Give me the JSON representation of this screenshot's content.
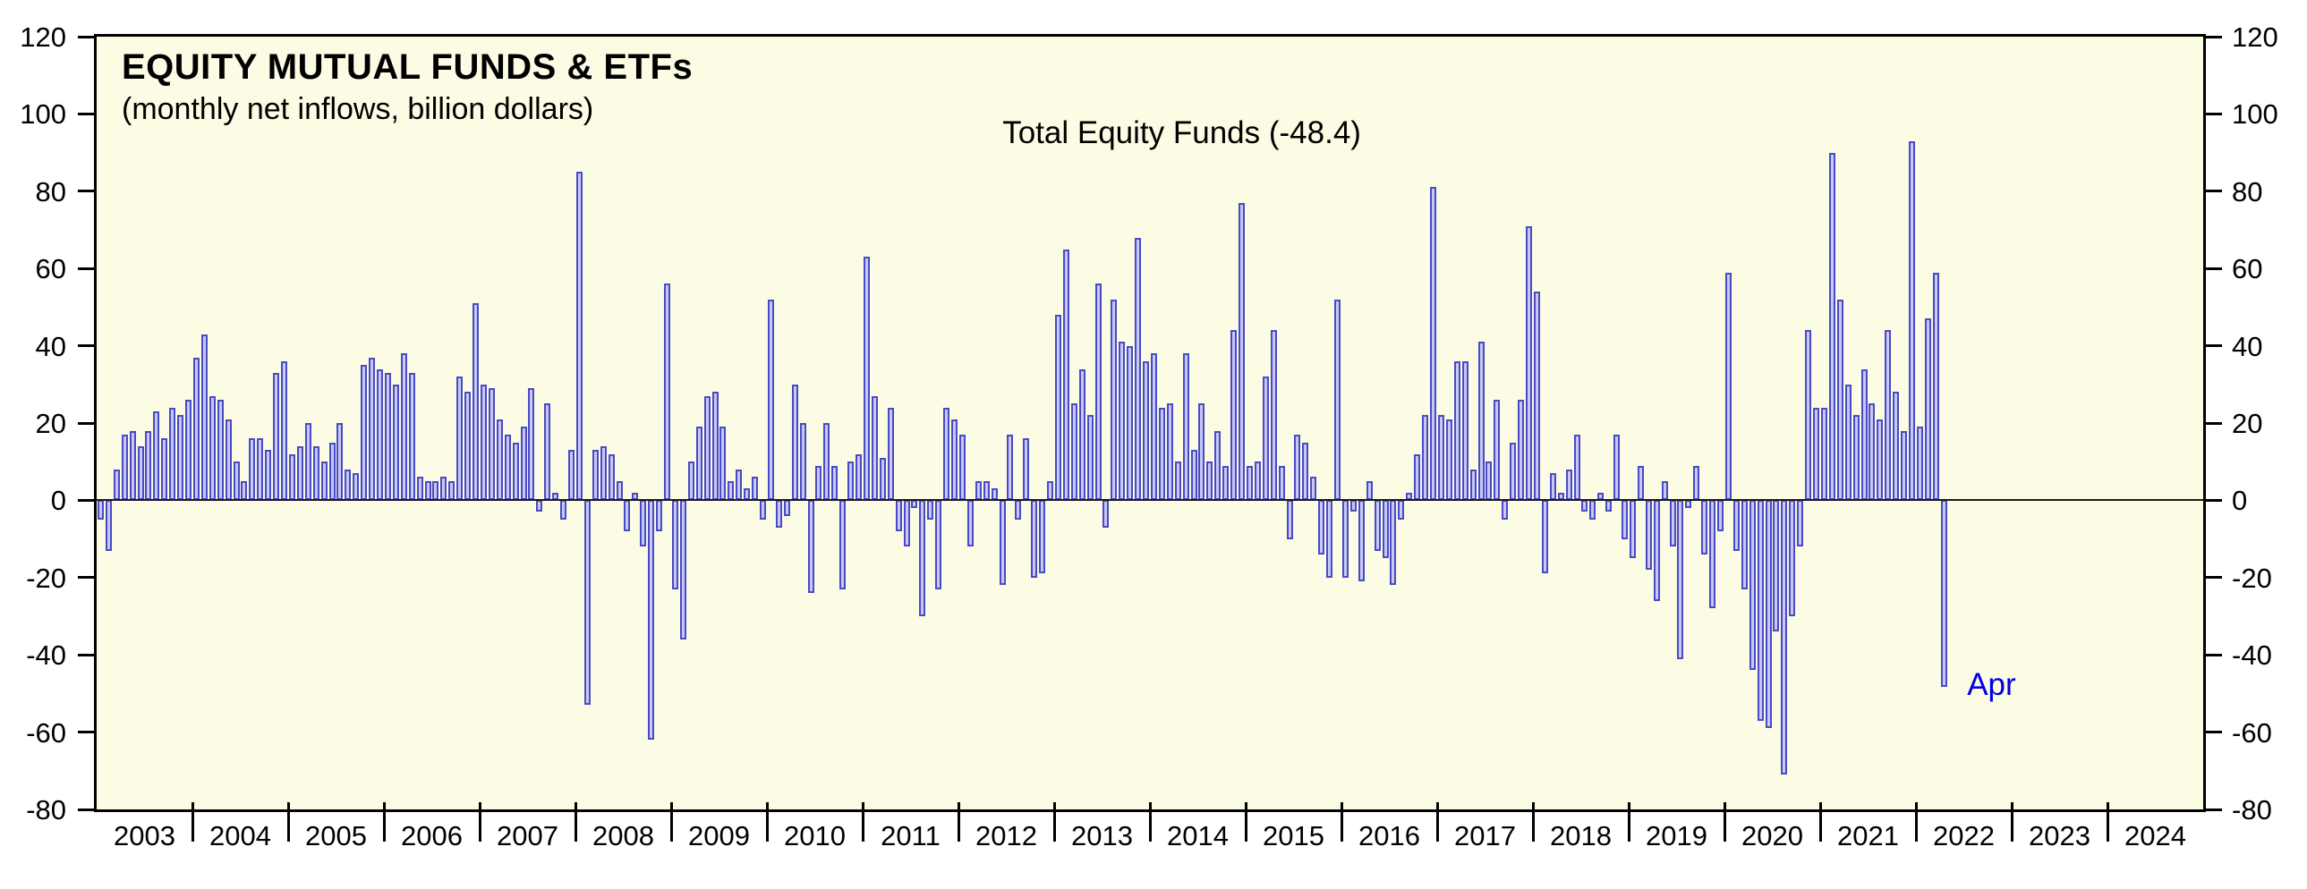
{
  "chart_data": {
    "type": "bar",
    "title": "EQUITY MUTUAL FUNDS & ETFs",
    "subtitle": "(monthly net inflows, billion dollars)",
    "series_label": "Total Equity Funds (-48.4)",
    "end_label": "Apr",
    "xlabel": "",
    "ylabel": "",
    "ylim": [
      -80,
      120
    ],
    "ytick_step": 20,
    "yticks": [
      -80,
      -60,
      -40,
      -20,
      0,
      20,
      40,
      60,
      80,
      100,
      120
    ],
    "x_years_axis": [
      "2003",
      "2004",
      "2005",
      "2006",
      "2007",
      "2008",
      "2009",
      "2010",
      "2011",
      "2012",
      "2013",
      "2014",
      "2015",
      "2016",
      "2017",
      "2018",
      "2019",
      "2020",
      "2021",
      "2022",
      "2023",
      "2024"
    ],
    "data_start_year": 2003,
    "data_start_month": "2003-01",
    "data_end_month": "2022-04",
    "grid": false,
    "legend_position": "none",
    "series": [
      {
        "name": "Total Equity Funds",
        "last_value": -48.4,
        "values_by_year": {
          "2003": [
            -5,
            -13,
            8,
            17,
            18,
            14,
            18,
            23,
            16,
            24,
            22,
            26
          ],
          "2004": [
            37,
            43,
            27,
            26,
            21,
            10,
            5,
            16,
            16,
            13,
            33,
            36
          ],
          "2005": [
            12,
            14,
            20,
            14,
            10,
            15,
            20,
            8,
            7,
            35,
            37,
            34
          ],
          "2006": [
            33,
            30,
            38,
            33,
            6,
            5,
            5,
            6,
            5,
            32,
            28,
            51
          ],
          "2007": [
            30,
            29,
            21,
            17,
            15,
            19,
            29,
            -3,
            25,
            2,
            -5,
            13
          ],
          "2008": [
            85,
            -53,
            13,
            14,
            12,
            5,
            -8,
            2,
            -12,
            -62,
            -8,
            56
          ],
          "2009": [
            -23,
            -36,
            10,
            19,
            27,
            28,
            19,
            5,
            8,
            3,
            6,
            -5
          ],
          "2010": [
            52,
            -7,
            -4,
            30,
            20,
            -24,
            9,
            20,
            9,
            -23,
            10,
            12
          ],
          "2011": [
            63,
            27,
            11,
            24,
            -8,
            -12,
            -2,
            -30,
            -5,
            -23,
            24,
            21
          ],
          "2012": [
            17,
            -12,
            5,
            5,
            3,
            -22,
            17,
            -5,
            16,
            -20,
            -19,
            5
          ],
          "2013": [
            48,
            65,
            25,
            34,
            22,
            56,
            -7,
            52,
            41,
            40,
            68,
            36
          ],
          "2014": [
            38,
            24,
            25,
            10,
            38,
            13,
            25,
            10,
            18,
            9,
            44,
            77
          ],
          "2015": [
            9,
            10,
            32,
            44,
            9,
            -10,
            17,
            15,
            6,
            -14,
            -20,
            52
          ],
          "2016": [
            -20,
            -3,
            -21,
            5,
            -13,
            -15,
            -22,
            -5,
            2,
            12,
            22,
            81
          ],
          "2017": [
            22,
            21,
            36,
            36,
            8,
            41,
            10,
            26,
            -5,
            15,
            26,
            71
          ],
          "2018": [
            54,
            -19,
            7,
            2,
            8,
            17,
            -3,
            -5,
            2,
            -3,
            17,
            -10
          ],
          "2019": [
            -15,
            9,
            -18,
            -26,
            5,
            -12,
            -41,
            -2,
            9,
            -14,
            -28,
            -8
          ],
          "2020": [
            59,
            -13,
            -23,
            -44,
            -57,
            -59,
            -34,
            -71,
            -30,
            -12,
            44,
            24
          ],
          "2021": [
            24,
            90,
            52,
            30,
            22,
            34,
            25,
            21,
            44,
            28,
            18,
            93
          ],
          "2022": [
            19,
            47,
            59,
            -48.4
          ]
        }
      }
    ],
    "colors": {
      "plot_background": "#FCFBE3",
      "bar_fill": "#C6C8F7",
      "bar_stroke": "#4A4AC4",
      "axis": "#000000",
      "end_label_color": "#0000E6",
      "text": "#000000"
    }
  }
}
